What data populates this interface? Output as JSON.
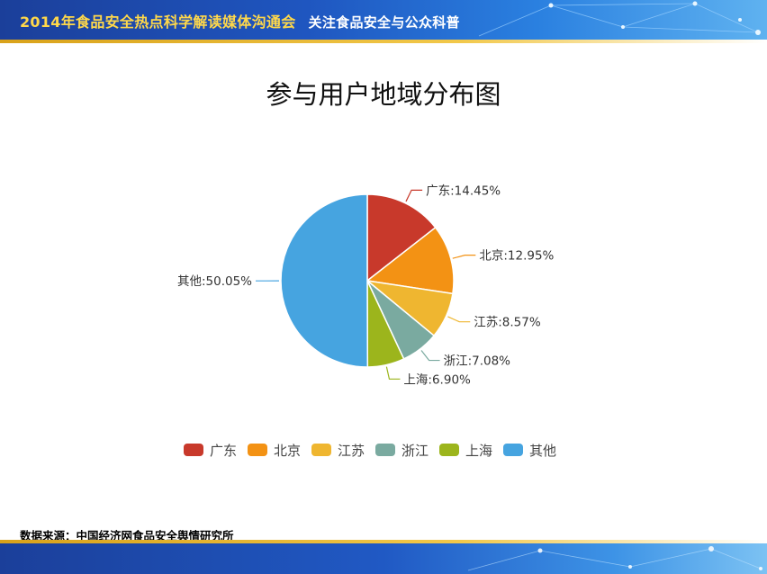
{
  "banner": {
    "main": "2014年食品安全热点科学解读媒体沟通会",
    "sub": "关注食品安全与公众科普"
  },
  "source": "数据来源：中国经济网食品安全舆情研究所",
  "chart_data": {
    "type": "pie",
    "title": "参与用户地域分布图",
    "slices": [
      {
        "label": "广东",
        "value": 14.45,
        "color": "#c8392b"
      },
      {
        "label": "北京",
        "value": 12.95,
        "color": "#f39214"
      },
      {
        "label": "江苏",
        "value": 8.57,
        "color": "#efb630"
      },
      {
        "label": "浙江",
        "value": 7.08,
        "color": "#7aaaa0"
      },
      {
        "label": "上海",
        "value": 6.9,
        "color": "#9cb51c"
      },
      {
        "label": "其他",
        "value": 50.05,
        "color": "#46a4e0"
      }
    ],
    "legend_position": "bottom"
  }
}
